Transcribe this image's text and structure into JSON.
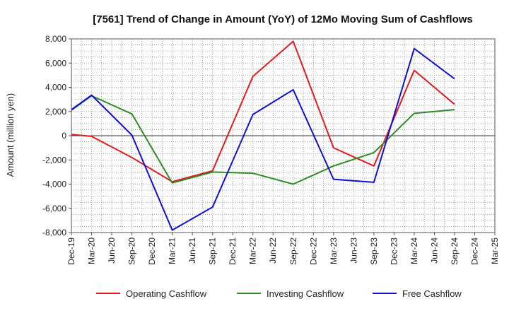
{
  "chart_data": {
    "type": "line",
    "title": "[7561]  Trend of Change in Amount (YoY) of 12Mo Moving Sum of Cashflows",
    "xlabel": "",
    "ylabel": "Amount (million yen)",
    "ylim": [
      -8000,
      8000
    ],
    "yticks": [
      8000,
      6000,
      4000,
      2000,
      0,
      -2000,
      -4000,
      -6000,
      -8000
    ],
    "ytick_labels": [
      "8,000",
      "6,000",
      "4,000",
      "2,000",
      "0",
      "-2,000",
      "-4,000",
      "-6,000",
      "-8,000"
    ],
    "categories": [
      "Dec-19",
      "Mar-20",
      "Jun-20",
      "Sep-20",
      "Dec-20",
      "Mar-21",
      "Jun-21",
      "Sep-21",
      "Dec-21",
      "Mar-22",
      "Jun-22",
      "Sep-22",
      "Dec-22",
      "Mar-23",
      "Jun-23",
      "Sep-23",
      "Dec-23",
      "Mar-24",
      "Jun-24",
      "Sep-24",
      "Dec-24",
      "Mar-25"
    ],
    "grid": true,
    "legend_position": "bottom",
    "series": [
      {
        "name": "Operating Cashflow",
        "color": "#e31a1c",
        "values": [
          100,
          -50,
          null,
          -1800,
          null,
          -3800,
          null,
          -2900,
          null,
          4900,
          null,
          7800,
          null,
          -1000,
          null,
          -2500,
          null,
          5400,
          null,
          2600,
          null,
          null
        ]
      },
      {
        "name": "Investing Cashflow",
        "color": "#2e8b24",
        "values": [
          2100,
          3300,
          null,
          1800,
          null,
          -3900,
          null,
          -3000,
          null,
          -3100,
          null,
          -4000,
          null,
          -2500,
          null,
          -1400,
          null,
          1850,
          null,
          2150,
          null,
          null
        ]
      },
      {
        "name": "Free Cashflow",
        "color": "#1010d0",
        "values": [
          2150,
          3350,
          null,
          50,
          null,
          -7800,
          null,
          -5900,
          null,
          1750,
          null,
          3800,
          null,
          -3600,
          null,
          -3850,
          null,
          7200,
          null,
          4700,
          null,
          null
        ]
      }
    ]
  }
}
